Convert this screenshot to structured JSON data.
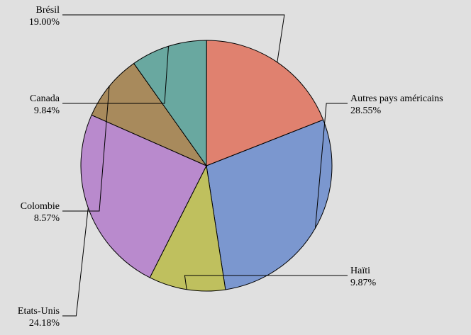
{
  "chart_data": {
    "type": "pie",
    "title": "",
    "slices": [
      {
        "label": "Autres pays américains",
        "value": 28.55,
        "value_text": "28.55%",
        "color": "#7b97cf"
      },
      {
        "label": "Haïti",
        "value": 9.87,
        "value_text": "9.87%",
        "color": "#bfc05e"
      },
      {
        "label": "Etats-Unis",
        "value": 24.18,
        "value_text": "24.18%",
        "color": "#b98acd"
      },
      {
        "label": "Colombie",
        "value": 8.57,
        "value_text": "8.57%",
        "color": "#a88a5c"
      },
      {
        "label": "Canada",
        "value": 9.84,
        "value_text": "9.84%",
        "color": "#69a8a0"
      },
      {
        "label": "Brésil",
        "value": 19.0,
        "value_text": "19.00%",
        "color": "#e0816f"
      }
    ],
    "start": "top-right, clockwise",
    "legend": "none (labels with leader lines)",
    "background": "#e0e0e0"
  }
}
